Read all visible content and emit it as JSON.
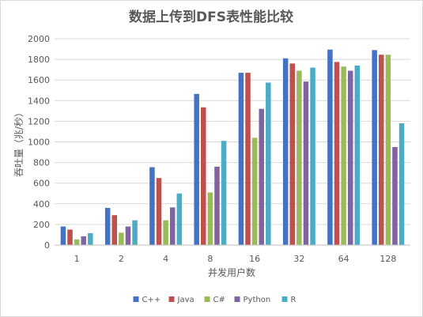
{
  "chart_data": {
    "type": "bar",
    "title": "数据上传到DFS表性能比较",
    "xlabel": "并发用户数",
    "ylabel": "吞吐量（兆/秒）",
    "ylim": [
      0,
      2000
    ],
    "yticks": [
      0,
      200,
      400,
      600,
      800,
      1000,
      1200,
      1400,
      1600,
      1800,
      2000
    ],
    "grid": true,
    "legend_position": "bottom",
    "categories": [
      "1",
      "2",
      "4",
      "8",
      "16",
      "32",
      "64",
      "128"
    ],
    "series": [
      {
        "name": "C++",
        "color": "#4472c4",
        "values": [
          180,
          360,
          755,
          1465,
          1670,
          1810,
          1895,
          1890
        ]
      },
      {
        "name": "Java",
        "color": "#c0504d",
        "values": [
          150,
          290,
          650,
          1335,
          1670,
          1760,
          1775,
          1845
        ]
      },
      {
        "name": "C#",
        "color": "#9bbb59",
        "values": [
          55,
          120,
          240,
          510,
          1040,
          1690,
          1730,
          1845
        ]
      },
      {
        "name": "Python",
        "color": "#8064a2",
        "values": [
          85,
          180,
          365,
          760,
          1320,
          1585,
          1690,
          950
        ]
      },
      {
        "name": "R",
        "color": "#4bacc6",
        "values": [
          115,
          240,
          500,
          1010,
          1575,
          1720,
          1740,
          1180
        ]
      }
    ]
  }
}
